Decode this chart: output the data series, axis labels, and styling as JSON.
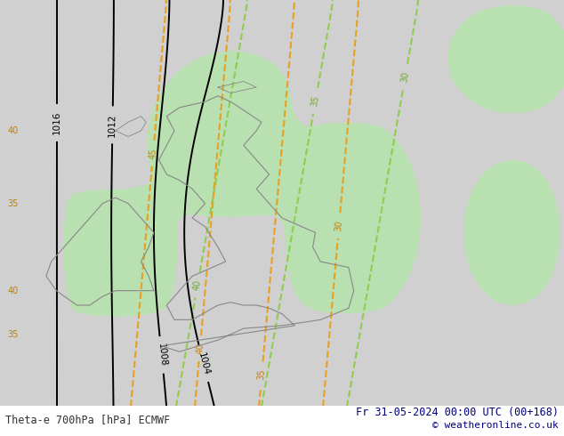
{
  "title_left": "Theta-e 700hPa [hPa] ECMWF",
  "title_right": "Fr 31-05-2024 00:00 UTC (00+168)",
  "copyright": "© weatheronline.co.uk",
  "background_color": "#d8d8d8",
  "land_color": "#c8c8c8",
  "green_fill_color": "#b8e0b0",
  "fig_width": 6.34,
  "fig_height": 4.9,
  "dpi": 100
}
